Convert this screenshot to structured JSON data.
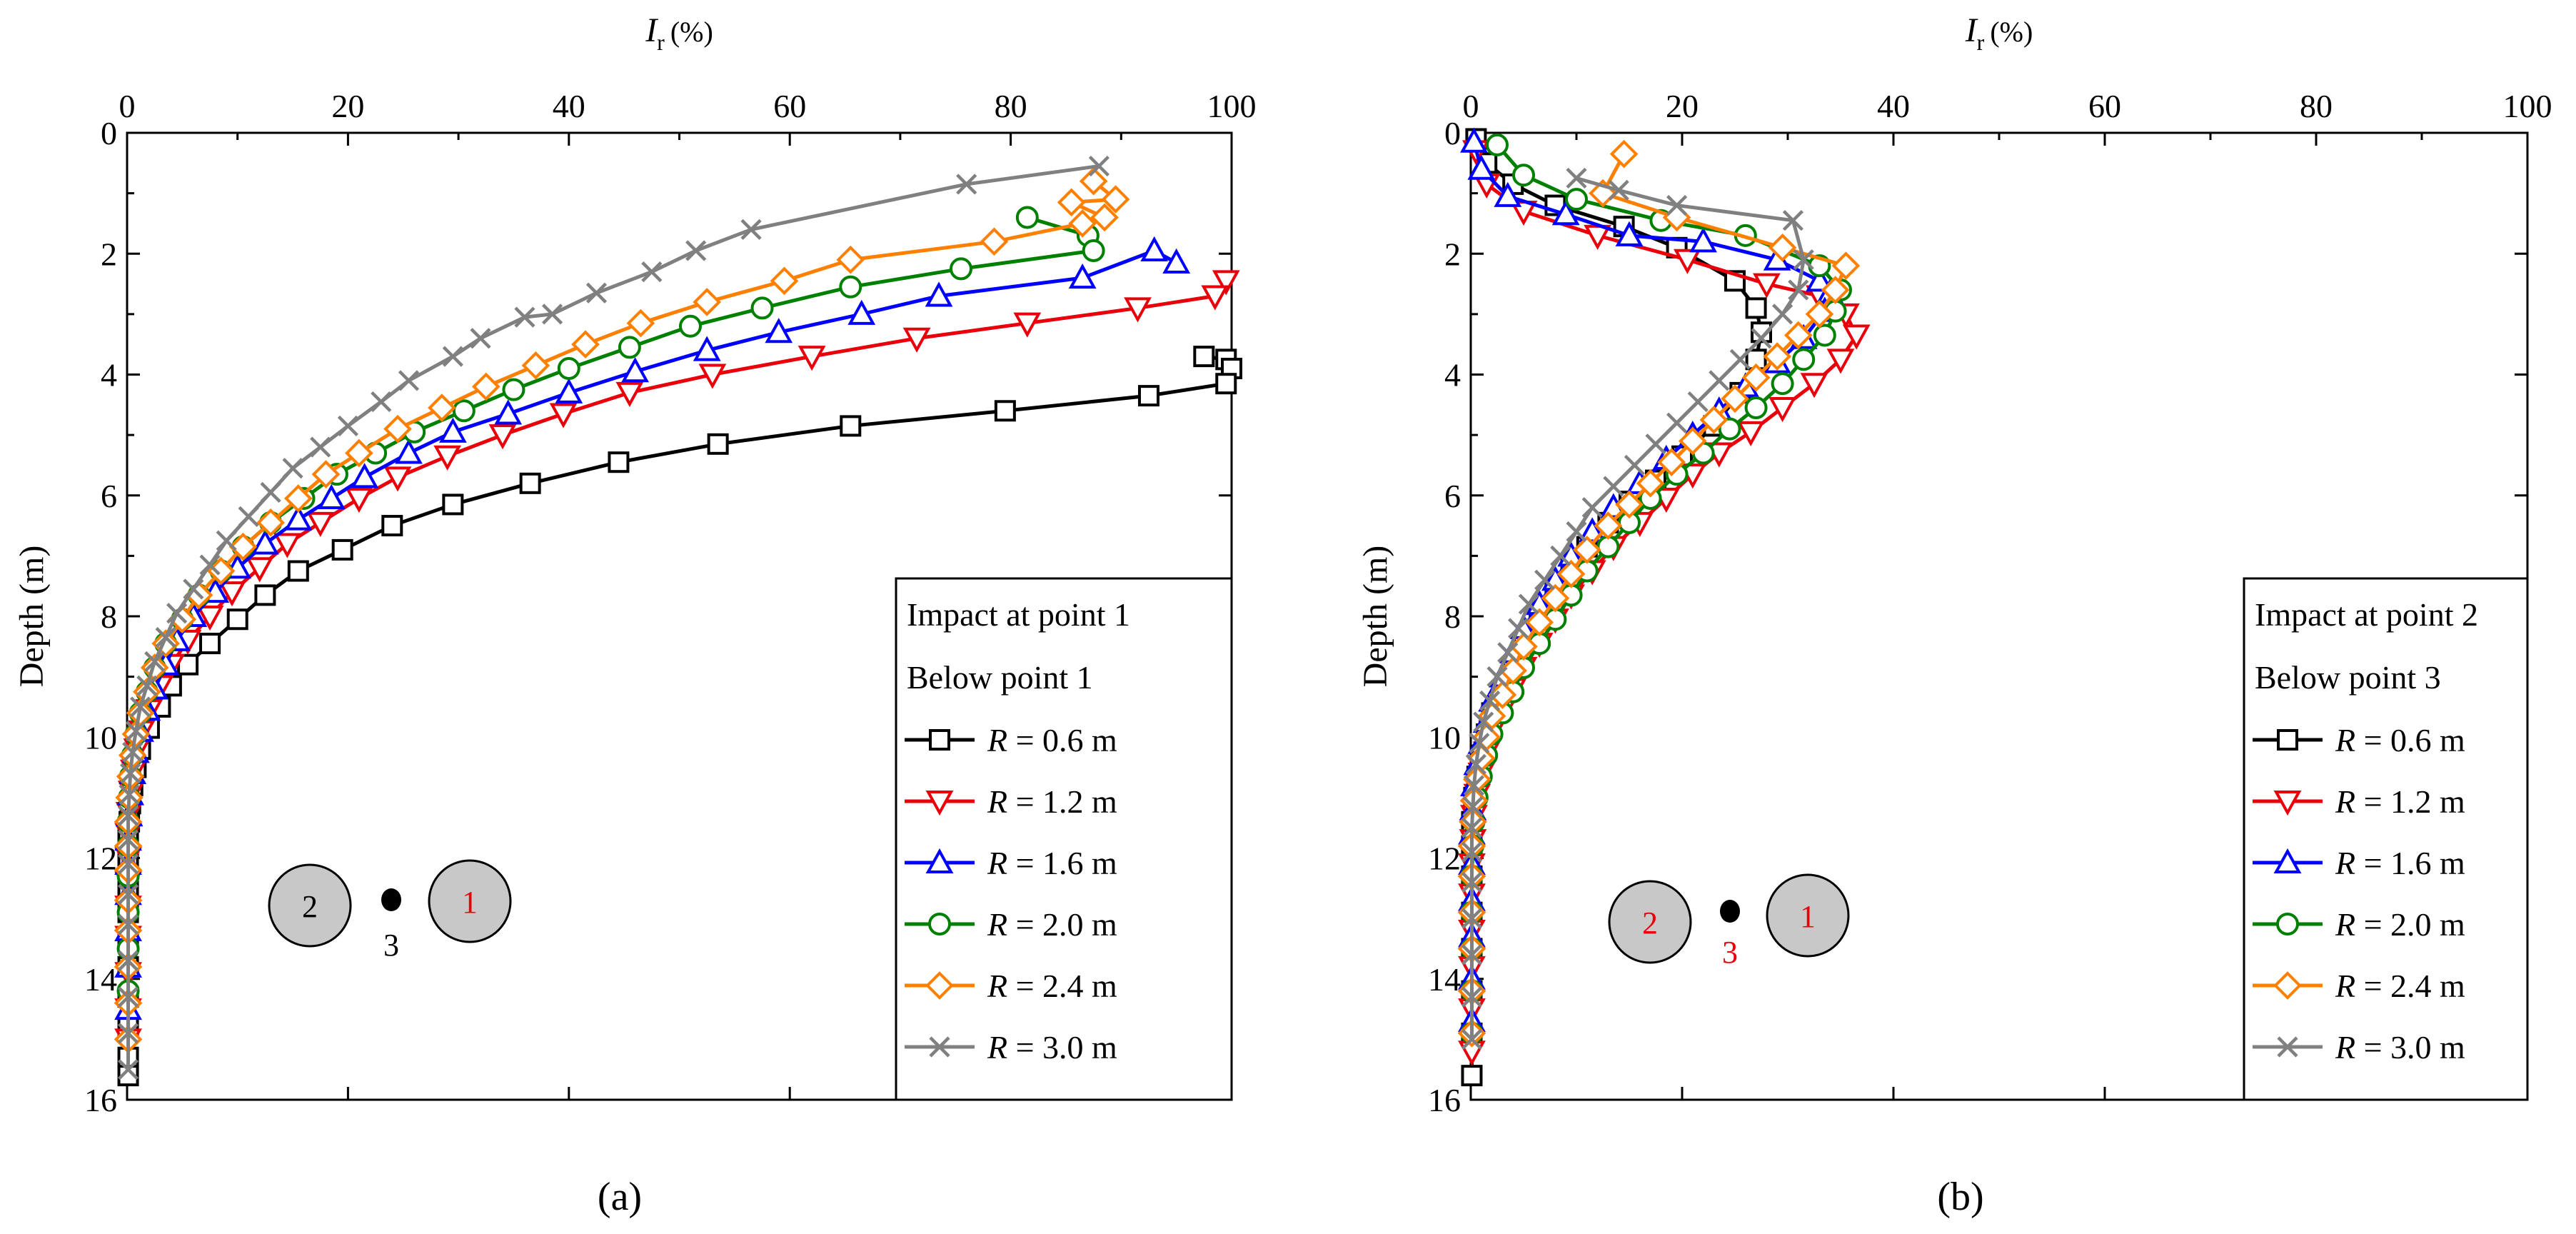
{
  "figure": {
    "panel_labels": [
      "(a)",
      "(b)"
    ]
  },
  "chart_data": [
    {
      "panel": "(a)",
      "type": "line",
      "xlabel": "I",
      "xlabel_subscript": "r",
      "xlabel_unit": "(%)",
      "ylabel": "Depth (m)",
      "xlim": [
        0,
        100
      ],
      "ylim": [
        0,
        16
      ],
      "y_inverted": true,
      "x_axis_position": "top",
      "xticks": [
        0,
        20,
        40,
        60,
        80,
        100
      ],
      "yticks": [
        0,
        2,
        4,
        6,
        8,
        10,
        12,
        14,
        16
      ],
      "legend": {
        "placement": "bottom-right",
        "title_lines": [
          "Impact at point 1",
          "Below point 1"
        ]
      },
      "inset": {
        "labels": [
          "2",
          "3",
          "1"
        ],
        "label_colors": [
          "#000000",
          "#000000",
          "#e8000b"
        ]
      },
      "series": [
        {
          "name": "R = 0.6 m",
          "symbol": "R",
          "value_text": " = 0.6 m",
          "color": "#000000",
          "marker": "square",
          "x": [
            97.5,
            99.5,
            100,
            99.5,
            92.5,
            79.5,
            65.5,
            53.5,
            44.5,
            36.5,
            29.5,
            24,
            19.5,
            15.5,
            12.5,
            10,
            7.5,
            5.5,
            4,
            3,
            2,
            1.2,
            0.8,
            0.5,
            0.3,
            0.2,
            0.1,
            0.1,
            0.1,
            0.1,
            0.1,
            0.1,
            0.1,
            0.1,
            0.1,
            0.1,
            0.1
          ],
          "y": [
            3.7,
            3.75,
            3.9,
            4.15,
            4.35,
            4.6,
            4.85,
            5.15,
            5.45,
            5.8,
            6.15,
            6.5,
            6.9,
            7.25,
            7.65,
            8.05,
            8.45,
            8.8,
            9.15,
            9.5,
            9.85,
            10.2,
            10.5,
            10.8,
            11.1,
            11.4,
            11.7,
            12.0,
            12.3,
            12.6,
            12.9,
            13.3,
            13.8,
            14.3,
            14.8,
            15.3,
            15.6
          ]
        },
        {
          "name": "R = 1.2 m",
          "symbol": "R",
          "value_text": " = 1.2 m",
          "color": "#e8000b",
          "marker": "triangle-down",
          "x": [
            99.5,
            98.5,
            91.5,
            81.5,
            71.5,
            62,
            53,
            45.5,
            39.5,
            34,
            29,
            24.5,
            21,
            17.5,
            14.5,
            12,
            9.5,
            7.5,
            5.5,
            4,
            3,
            2,
            1.3,
            0.9,
            0.6,
            0.4,
            0.2,
            0.1,
            0.1,
            0.1,
            0.1,
            0.1,
            0.1,
            0.1,
            0.1
          ],
          "y": [
            2.45,
            2.7,
            2.9,
            3.15,
            3.4,
            3.7,
            4.0,
            4.3,
            4.65,
            5.0,
            5.35,
            5.7,
            6.05,
            6.45,
            6.8,
            7.2,
            7.6,
            8.0,
            8.4,
            8.8,
            9.15,
            9.55,
            9.9,
            10.2,
            10.55,
            10.9,
            11.25,
            11.6,
            12.0,
            12.4,
            12.8,
            13.3,
            13.9,
            14.5,
            15.0
          ]
        },
        {
          "name": "R = 1.6 m",
          "symbol": "R",
          "value_text": " = 1.6 m",
          "color": "#0000ff",
          "marker": "triangle-up",
          "x": [
            95,
            93,
            86.5,
            73.5,
            66.5,
            59,
            52.5,
            46,
            40,
            34.5,
            29.5,
            25.5,
            21.5,
            18.5,
            15.5,
            12.5,
            10,
            8,
            6,
            4.5,
            3.5,
            2.5,
            1.8,
            1.2,
            0.8,
            0.5,
            0.3,
            0.2,
            0.1,
            0.1,
            0.1,
            0.1,
            0.1,
            0.1
          ],
          "y": [
            2.15,
            1.95,
            2.4,
            2.7,
            3.0,
            3.3,
            3.6,
            3.95,
            4.3,
            4.65,
            4.95,
            5.3,
            5.7,
            6.05,
            6.4,
            6.8,
            7.2,
            7.6,
            8.0,
            8.4,
            8.8,
            9.2,
            9.55,
            9.9,
            10.25,
            10.6,
            10.95,
            11.3,
            11.7,
            12.1,
            12.6,
            13.2,
            13.8,
            14.5
          ]
        },
        {
          "name": "R = 2.0 m",
          "symbol": "R",
          "value_text": " = 2.0 m",
          "color": "#008000",
          "marker": "circle",
          "x": [
            81.5,
            87,
            87.5,
            75.5,
            65.5,
            57.5,
            51,
            45.5,
            40,
            35,
            30.5,
            26,
            22.5,
            19,
            16,
            13,
            10.5,
            8.5,
            6.5,
            5,
            3.5,
            2.5,
            1.8,
            1.2,
            0.8,
            0.5,
            0.3,
            0.2,
            0.1,
            0.1,
            0.1,
            0.1,
            0.1,
            0.1
          ],
          "y": [
            1.4,
            1.7,
            1.95,
            2.25,
            2.55,
            2.9,
            3.2,
            3.55,
            3.9,
            4.25,
            4.6,
            4.95,
            5.3,
            5.65,
            6.05,
            6.45,
            6.85,
            7.25,
            7.65,
            8.05,
            8.45,
            8.85,
            9.25,
            9.6,
            9.95,
            10.3,
            10.65,
            11.0,
            11.4,
            11.8,
            12.3,
            12.9,
            13.5,
            14.2
          ]
        },
        {
          "name": "R = 2.4 m",
          "symbol": "R",
          "value_text": " = 2.4 m",
          "color": "#ff8000",
          "marker": "diamond",
          "x": [
            87.5,
            89.5,
            85.5,
            88.5,
            86.5,
            78.5,
            65.5,
            59.5,
            52.5,
            46.5,
            41.5,
            37,
            32.5,
            28.5,
            24.5,
            21,
            18,
            15.5,
            13,
            10.5,
            8.5,
            6.5,
            5,
            3.5,
            2.5,
            1.8,
            1.2,
            0.8,
            0.5,
            0.3,
            0.2,
            0.1,
            0.1,
            0.1,
            0.1,
            0.1,
            0.1,
            0.1,
            0.1
          ],
          "y": [
            0.8,
            1.1,
            1.15,
            1.4,
            1.5,
            1.8,
            2.1,
            2.45,
            2.8,
            3.15,
            3.5,
            3.85,
            4.2,
            4.55,
            4.9,
            5.3,
            5.65,
            6.05,
            6.45,
            6.85,
            7.25,
            7.65,
            8.05,
            8.45,
            8.85,
            9.25,
            9.6,
            9.95,
            10.3,
            10.65,
            11.0,
            11.4,
            11.8,
            12.2,
            12.7,
            13.2,
            13.8,
            14.4,
            15.0
          ]
        },
        {
          "name": "R = 3.0 m",
          "symbol": "R",
          "value_text": " = 3.0 m",
          "color": "#808080",
          "marker": "x",
          "x": [
            88,
            76,
            56.5,
            51.5,
            47.5,
            42.5,
            38.5,
            36,
            32,
            29.5,
            25.5,
            23,
            20,
            17.5,
            15,
            13,
            11,
            9,
            7.5,
            6,
            4.5,
            3.5,
            2.5,
            1.8,
            1.2,
            0.8,
            0.5,
            0.3,
            0.2,
            0.1,
            0.1,
            0.1,
            0.1,
            0.1,
            0.1,
            0.1,
            0.1,
            0.1
          ],
          "y": [
            0.55,
            0.85,
            1.6,
            1.95,
            2.3,
            2.65,
            3.0,
            3.05,
            3.4,
            3.7,
            4.1,
            4.45,
            4.85,
            5.2,
            5.55,
            5.95,
            6.35,
            6.75,
            7.15,
            7.55,
            7.95,
            8.35,
            8.75,
            9.15,
            9.5,
            9.9,
            10.25,
            10.6,
            10.95,
            11.3,
            11.7,
            12.1,
            12.6,
            13.1,
            13.7,
            14.3,
            14.9,
            15.5
          ]
        }
      ]
    },
    {
      "panel": "(b)",
      "type": "line",
      "xlabel": "I",
      "xlabel_subscript": "r",
      "xlabel_unit": "(%)",
      "ylabel": "Depth (m)",
      "xlim": [
        0,
        100
      ],
      "ylim": [
        0,
        16
      ],
      "y_inverted": true,
      "x_axis_position": "top",
      "xticks": [
        0,
        20,
        40,
        60,
        80,
        100
      ],
      "yticks": [
        0,
        2,
        4,
        6,
        8,
        10,
        12,
        14,
        16
      ],
      "legend": {
        "placement": "bottom-right",
        "title_lines": [
          "Impact at point 2",
          "Below point 3"
        ]
      },
      "inset": {
        "labels": [
          "2",
          "3",
          "1"
        ],
        "label_colors": [
          "#e8000b",
          "#e8000b",
          "#e8000b"
        ]
      },
      "series": [
        {
          "name": "R = 0.6 m",
          "symbol": "R",
          "value_text": " = 0.6 m",
          "color": "#000000",
          "marker": "square",
          "x": [
            0.5,
            1.5,
            4,
            8,
            14.5,
            19.5,
            25,
            27,
            27.5,
            27,
            25.5,
            23,
            20,
            17.5,
            15,
            13,
            11,
            9.5,
            8,
            6.5,
            5,
            4,
            3,
            2,
            1.5,
            1,
            0.6,
            0.3,
            0.1,
            0.1,
            0.1,
            0.1,
            0.1,
            0.1,
            0.1,
            0.1
          ],
          "y": [
            0.1,
            0.5,
            0.85,
            1.2,
            1.55,
            1.9,
            2.45,
            2.9,
            3.3,
            3.75,
            4.3,
            4.85,
            5.35,
            5.75,
            6.1,
            6.45,
            6.85,
            7.2,
            7.6,
            8.05,
            8.45,
            8.85,
            9.25,
            9.6,
            9.95,
            10.3,
            10.65,
            11.0,
            11.4,
            11.8,
            12.3,
            12.9,
            13.5,
            14.2,
            14.9,
            15.6
          ]
        },
        {
          "name": "R = 1.2 m",
          "symbol": "R",
          "value_text": " = 1.2 m",
          "color": "#e8000b",
          "marker": "triangle-down",
          "x": [
            0.5,
            1.5,
            5,
            12,
            20.5,
            28,
            33,
            35.5,
            36.5,
            35,
            32.5,
            29.5,
            26.5,
            23.5,
            21,
            18.5,
            16,
            13.5,
            11.5,
            9.5,
            8,
            6.5,
            5,
            4,
            3,
            2,
            1.5,
            1,
            0.6,
            0.3,
            0.2,
            0.1,
            0.1,
            0.1,
            0.1,
            0.1,
            0.1
          ],
          "y": [
            0.3,
            0.85,
            1.3,
            1.7,
            2.1,
            2.5,
            2.7,
            3.0,
            3.35,
            3.75,
            4.15,
            4.55,
            4.95,
            5.3,
            5.65,
            6.05,
            6.45,
            6.85,
            7.25,
            7.65,
            8.05,
            8.45,
            8.85,
            9.2,
            9.55,
            9.9,
            10.25,
            10.6,
            10.95,
            11.3,
            11.7,
            12.1,
            12.6,
            13.2,
            13.8,
            14.5,
            15.2
          ]
        },
        {
          "name": "R = 1.6 m",
          "symbol": "R",
          "value_text": " = 1.6 m",
          "color": "#0000ff",
          "marker": "triangle-up",
          "x": [
            0.3,
            1,
            3.5,
            9,
            15,
            22,
            29,
            33,
            34,
            33.5,
            31.5,
            29,
            26,
            23.5,
            21,
            18.5,
            16,
            13.5,
            11.5,
            9.5,
            8,
            6.5,
            5,
            4,
            3,
            2,
            1.5,
            1,
            0.6,
            0.3,
            0.2,
            0.1,
            0.1,
            0.1,
            0.1,
            0.1,
            0.1
          ],
          "y": [
            0.15,
            0.6,
            1.05,
            1.35,
            1.7,
            1.8,
            2.1,
            2.45,
            2.65,
            2.95,
            3.4,
            3.8,
            4.2,
            4.6,
            5.0,
            5.4,
            5.8,
            6.2,
            6.6,
            7.0,
            7.4,
            7.8,
            8.2,
            8.6,
            9.0,
            9.4,
            9.75,
            10.1,
            10.45,
            10.8,
            11.2,
            11.6,
            12.1,
            12.7,
            13.3,
            14.0,
            14.7
          ]
        },
        {
          "name": "R = 2.0 m",
          "symbol": "R",
          "value_text": " = 2.0 m",
          "color": "#008000",
          "marker": "circle",
          "x": [
            2.5,
            5,
            10,
            18,
            26,
            33,
            35,
            34.5,
            33.5,
            31.5,
            29.5,
            27,
            24.5,
            22,
            19.5,
            17,
            15,
            13,
            11,
            9.5,
            8,
            6.5,
            5,
            4,
            3,
            2,
            1.5,
            1,
            0.6,
            0.3,
            0.2,
            0.1,
            0.1,
            0.1,
            0.1,
            0.1
          ],
          "y": [
            0.2,
            0.7,
            1.1,
            1.45,
            1.7,
            2.2,
            2.6,
            2.95,
            3.35,
            3.75,
            4.15,
            4.55,
            4.9,
            5.3,
            5.65,
            6.05,
            6.45,
            6.85,
            7.25,
            7.65,
            8.05,
            8.45,
            8.85,
            9.25,
            9.6,
            9.95,
            10.3,
            10.65,
            11.0,
            11.4,
            11.8,
            12.3,
            12.9,
            13.5,
            14.2,
            14.9
          ]
        },
        {
          "name": "R = 2.4 m",
          "symbol": "R",
          "value_text": " = 2.4 m",
          "color": "#ff8000",
          "marker": "diamond",
          "x": [
            14.5,
            12.5,
            19.5,
            29.5,
            35.5,
            34.5,
            33,
            31,
            29,
            27,
            25,
            23,
            21,
            19,
            17,
            15,
            13,
            11,
            9.5,
            8,
            6.5,
            5,
            4,
            3,
            2,
            1.5,
            1,
            0.6,
            0.3,
            0.2,
            0.1,
            0.1,
            0.1,
            0.1,
            0.1,
            0.1
          ],
          "y": [
            0.35,
            1.0,
            1.4,
            1.9,
            2.2,
            2.6,
            3.0,
            3.35,
            3.7,
            4.05,
            4.4,
            4.75,
            5.1,
            5.45,
            5.8,
            6.15,
            6.5,
            6.9,
            7.3,
            7.7,
            8.1,
            8.5,
            8.9,
            9.3,
            9.65,
            10.0,
            10.35,
            10.7,
            11.05,
            11.4,
            11.8,
            12.3,
            12.9,
            13.5,
            14.2,
            14.9
          ]
        },
        {
          "name": "R = 3.0 m",
          "symbol": "R",
          "value_text": " = 3.0 m",
          "color": "#808080",
          "marker": "x",
          "x": [
            10,
            14,
            19.5,
            30.5,
            31.5,
            31,
            29.5,
            27.5,
            25.5,
            23.5,
            21.5,
            19.5,
            17.5,
            15.5,
            13.5,
            11.5,
            10,
            8.5,
            7,
            5.5,
            4.5,
            3.5,
            2.5,
            1.8,
            1.2,
            0.8,
            0.5,
            0.3,
            0.2,
            0.1,
            0.1,
            0.1,
            0.1,
            0.1,
            0.1,
            0.1
          ],
          "y": [
            0.75,
            0.95,
            1.2,
            1.45,
            2.1,
            2.6,
            3.0,
            3.4,
            3.75,
            4.1,
            4.45,
            4.8,
            5.15,
            5.5,
            5.85,
            6.2,
            6.6,
            7.0,
            7.4,
            7.8,
            8.2,
            8.6,
            9.0,
            9.4,
            9.75,
            10.1,
            10.45,
            10.8,
            11.15,
            11.5,
            11.9,
            12.4,
            13.0,
            13.6,
            14.3,
            15.0
          ]
        }
      ]
    }
  ]
}
